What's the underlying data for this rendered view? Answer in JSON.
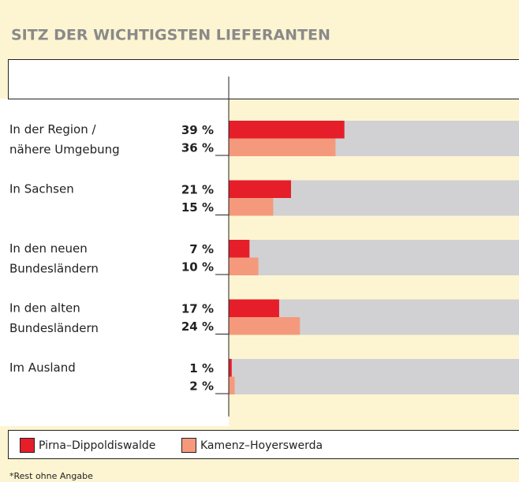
{
  "chart_data": {
    "type": "bar",
    "orientation": "horizontal",
    "title": "SITZ DER WICHTIGSTEN LIEFERANTEN",
    "categories": [
      [
        "In der Region /",
        "nähere Umgebung"
      ],
      [
        "In Sachsen"
      ],
      [
        "In den neuen",
        "Bundesländern"
      ],
      [
        "In den alten",
        "Bundesländern"
      ],
      [
        "Im Ausland"
      ]
    ],
    "series": [
      {
        "name": "Pirna–Dippoldiswalde",
        "color": "#e61e2a",
        "values": [
          39,
          21,
          7,
          17,
          1
        ],
        "value_labels": [
          "39 %",
          "21 %",
          "7 %",
          "17 %",
          "1 %"
        ]
      },
      {
        "name": "Kamenz–Hoyerswerda",
        "color": "#f5997c",
        "values": [
          36,
          15,
          10,
          24,
          2
        ],
        "value_labels": [
          "36 %",
          "15 %",
          "10 %",
          "24 %",
          "2 %"
        ]
      }
    ],
    "xlim": [
      0,
      100
    ],
    "footnote": "*Rest ohne Angabe"
  }
}
